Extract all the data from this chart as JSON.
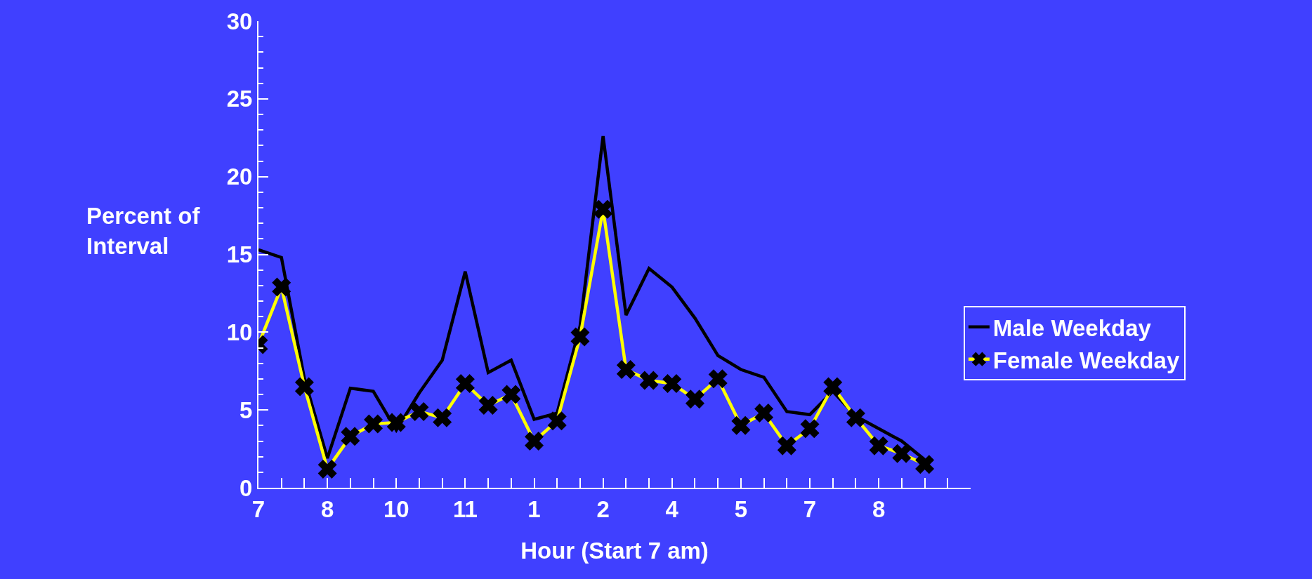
{
  "chart_data": {
    "type": "line",
    "xlabel": "Hour (Start 7 am)",
    "ylabel": "Percent of Interval",
    "categories": [
      "7",
      null,
      null,
      "8",
      null,
      null,
      "10",
      null,
      null,
      "11",
      null,
      null,
      "1",
      null,
      null,
      "2",
      null,
      null,
      "4",
      null,
      null,
      "5",
      null,
      null,
      "7",
      null,
      null,
      "8",
      null,
      null,
      null,
      null
    ],
    "series": [
      {
        "name": "Male Weekday",
        "color": "#000000",
        "marker": "none",
        "values": [
          15.3,
          14.8,
          7.0,
          1.9,
          6.4,
          6.2,
          3.7,
          6.1,
          8.2,
          13.9,
          7.4,
          8.2,
          4.4,
          4.8,
          10.4,
          22.6,
          11.1,
          14.1,
          12.9,
          10.9,
          8.5,
          7.6,
          7.1,
          4.9,
          4.7,
          6.2,
          4.6,
          3.8,
          3.0,
          1.8,
          null,
          null
        ]
      },
      {
        "name": "Female Weekday",
        "color": "#ffff00",
        "marker": "cross",
        "colors": [
          "#000000",
          "#000000",
          "#000000",
          "#000000",
          "#000000",
          "#000000",
          "#000000",
          "#000000",
          "#000000",
          "#000000",
          "#000000",
          "#000000",
          "#000000",
          "#000000",
          "#000000",
          "#000000",
          "#000000",
          "#000000",
          "#000000",
          "#000000",
          "#000000",
          "#000000",
          "#000000",
          "#000000",
          "#000000",
          "#000000",
          "#000000",
          "#000000",
          "#000000",
          "#000000",
          "#000000",
          "#000000"
        ],
        "values": [
          9.2,
          12.9,
          6.5,
          1.2,
          3.3,
          4.1,
          4.2,
          4.9,
          4.5,
          6.7,
          5.3,
          6.0,
          3.0,
          4.3,
          9.7,
          17.9,
          7.6,
          6.9,
          6.7,
          5.7,
          7.0,
          4.0,
          4.8,
          2.7,
          3.8,
          6.5,
          4.5,
          2.7,
          2.2,
          1.5,
          null,
          null
        ]
      }
    ],
    "ylim": [
      0,
      30
    ],
    "yticks": [
      0,
      5,
      10,
      15,
      20,
      25,
      30
    ],
    "grid": false,
    "legend": "right",
    "line_style": "solid"
  }
}
